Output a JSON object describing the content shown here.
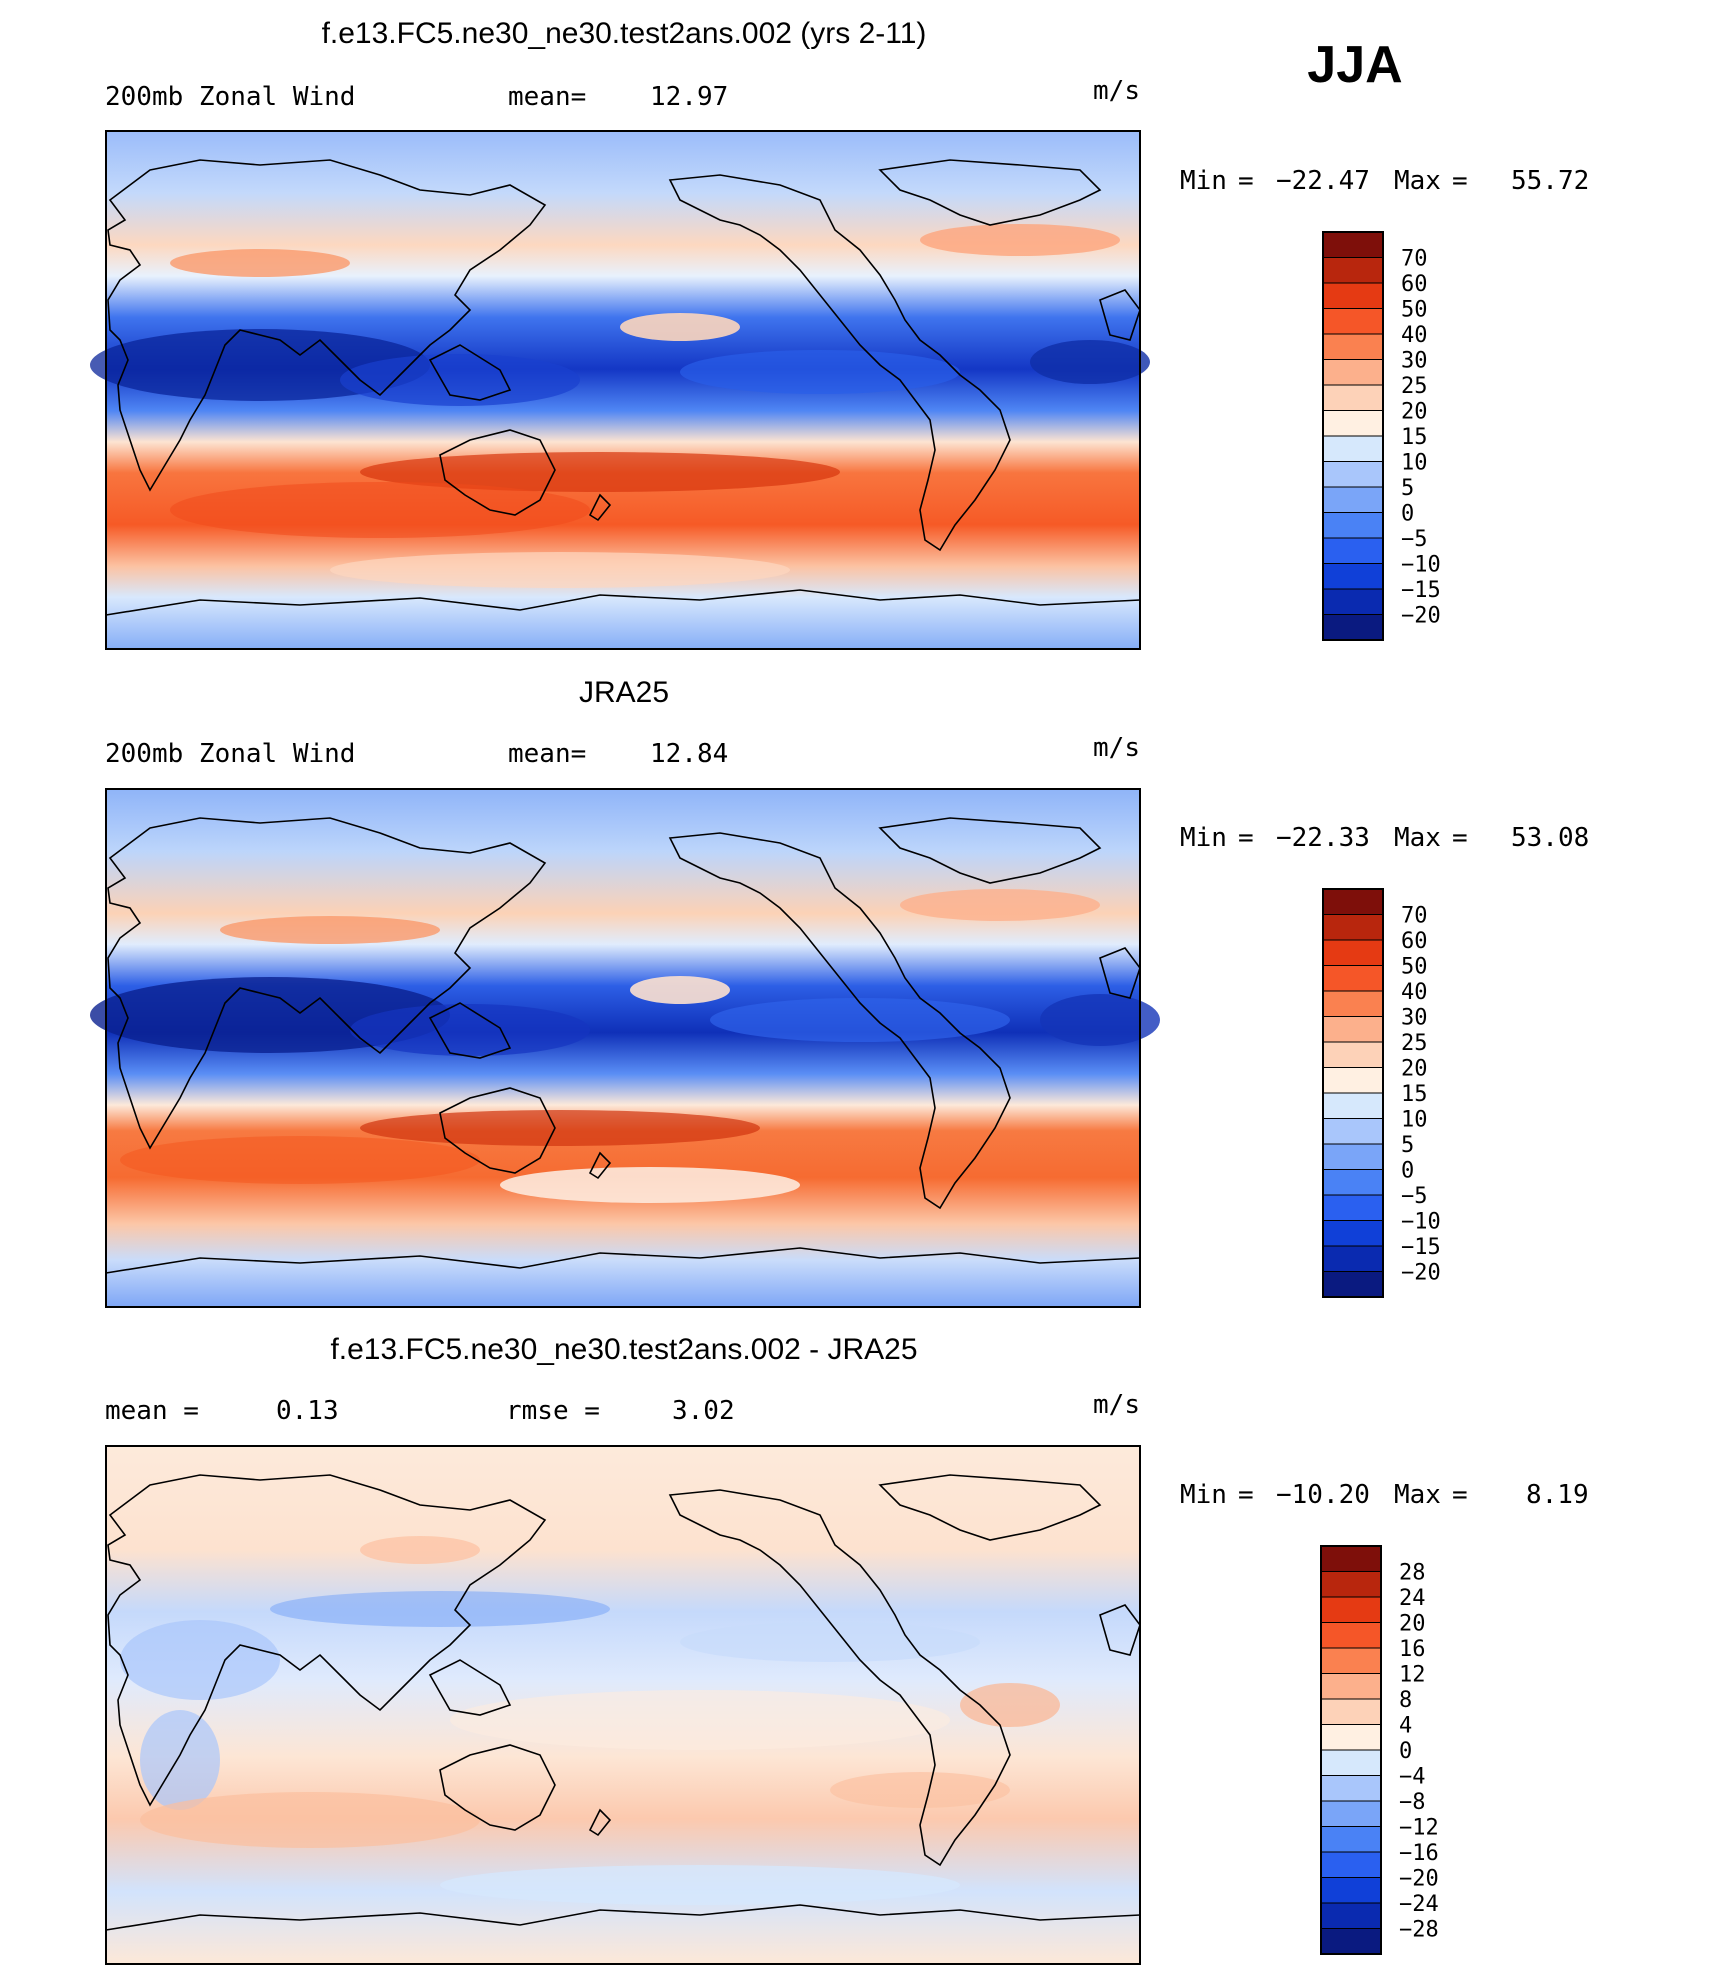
{
  "season": "JJA",
  "colorbar_colors": [
    "#0a1a80",
    "#0a2ab0",
    "#1040d8",
    "#2a60f0",
    "#4a82f5",
    "#7aa5f8",
    "#a9c6fb",
    "#d6e8fc",
    "#fff0e2",
    "#fdd2b8",
    "#fcb08c",
    "#fa8150",
    "#f55628",
    "#e53a13",
    "#b8260d",
    "#7e0f0a"
  ],
  "panels": [
    {
      "id": "model",
      "title": "f.e13.FC5.ne30_ne30.test2ans.002 (yrs 2-11)",
      "left_label": "200mb Zonal Wind",
      "mid_label": "mean=",
      "mid_value": "12.97",
      "units": "m/s",
      "min_label": "Min",
      "min_value": "−22.47",
      "max_label": "Max",
      "max_value": "55.72",
      "colorbar_labels": [
        "70",
        "60",
        "50",
        "40",
        "30",
        "25",
        "20",
        "15",
        "10",
        "5",
        "0",
        "−5",
        "−10",
        "−15",
        "−20"
      ]
    },
    {
      "id": "obs",
      "title": "JRA25",
      "left_label": "200mb Zonal Wind",
      "mid_label": "mean=",
      "mid_value": "12.84",
      "units": "m/s",
      "min_label": "Min",
      "min_value": "−22.33",
      "max_label": "Max",
      "max_value": "53.08",
      "colorbar_labels": [
        "70",
        "60",
        "50",
        "40",
        "30",
        "25",
        "20",
        "15",
        "10",
        "5",
        "0",
        "−5",
        "−10",
        "−15",
        "−20"
      ]
    },
    {
      "id": "diff",
      "title": "f.e13.FC5.ne30_ne30.test2ans.002 - JRA25",
      "left_label": "mean =",
      "left_value": "0.13",
      "mid_label": "rmse =",
      "mid_value": "3.02",
      "units": "m/s",
      "min_label": "Min",
      "min_value": "−10.20",
      "max_label": "Max",
      "max_value": "8.19",
      "colorbar_labels": [
        "28",
        "24",
        "20",
        "16",
        "12",
        "8",
        "4",
        "0",
        "−4",
        "−8",
        "−12",
        "−16",
        "−20",
        "−24",
        "−28"
      ]
    }
  ]
}
